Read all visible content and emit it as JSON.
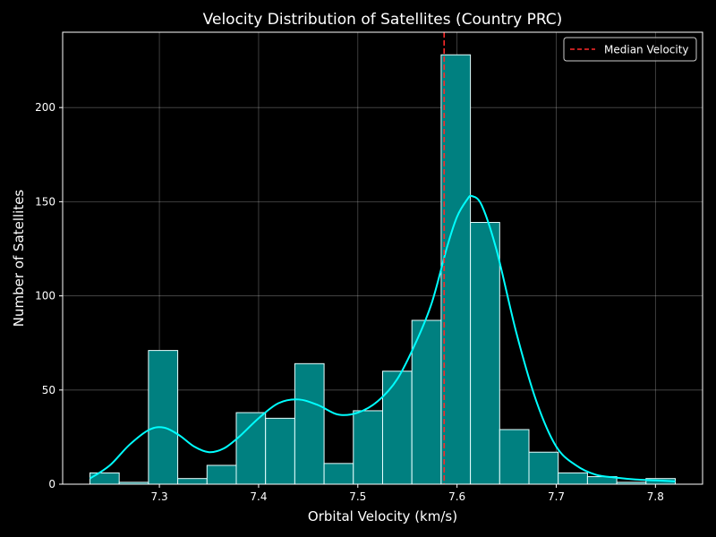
{
  "chart_data": {
    "type": "bar",
    "title": "Velocity Distribution of Satellites (Country PRC)",
    "xlabel": "Orbital Velocity (km/s)",
    "ylabel": "Number of Satellites",
    "xlim": [
      7.2025,
      7.8475
    ],
    "ylim": [
      0,
      240
    ],
    "x_ticks": [
      7.3,
      7.4,
      7.5,
      7.6,
      7.7,
      7.8
    ],
    "x_tick_labels": [
      "7.3",
      "7.4",
      "7.5",
      "7.6",
      "7.7",
      "7.8"
    ],
    "y_ticks": [
      0,
      50,
      100,
      150,
      200
    ],
    "y_tick_labels": [
      "0",
      "50",
      "100",
      "150",
      "200"
    ],
    "grid": true,
    "legend_position": "top-right",
    "histogram": {
      "bin_edges": [
        7.23,
        7.2595,
        7.289,
        7.3185,
        7.348,
        7.3775,
        7.407,
        7.4365,
        7.466,
        7.4955,
        7.525,
        7.5545,
        7.584,
        7.6135,
        7.643,
        7.6725,
        7.702,
        7.7315,
        7.761,
        7.7905,
        7.82
      ],
      "counts": [
        6,
        1,
        71,
        3,
        10,
        38,
        35,
        64,
        11,
        39,
        60,
        87,
        228,
        139,
        29,
        17,
        6,
        4,
        1,
        3
      ],
      "fill_color": "#008080",
      "edge_color": "#e6ffff"
    },
    "kde_curve": {
      "color": "#00ffff",
      "x": [
        7.23,
        7.25,
        7.27,
        7.29,
        7.305,
        7.32,
        7.335,
        7.35,
        7.365,
        7.38,
        7.4,
        7.42,
        7.44,
        7.46,
        7.48,
        7.5,
        7.52,
        7.54,
        7.56,
        7.575,
        7.59,
        7.6,
        7.61,
        7.615,
        7.625,
        7.64,
        7.66,
        7.68,
        7.7,
        7.72,
        7.74,
        7.76,
        7.78,
        7.8,
        7.82
      ],
      "y": [
        3,
        10,
        21,
        29,
        30,
        26,
        20,
        17,
        19,
        25,
        35,
        43,
        45,
        42,
        37,
        38,
        44,
        56,
        77,
        97,
        126,
        142,
        151,
        153,
        148,
        124,
        80,
        44,
        20,
        10,
        5,
        3.5,
        2.5,
        2,
        1.5
      ]
    },
    "median_line": {
      "x": 7.587,
      "color": "#ff2a2a",
      "legend_label": "Median Velocity"
    }
  }
}
